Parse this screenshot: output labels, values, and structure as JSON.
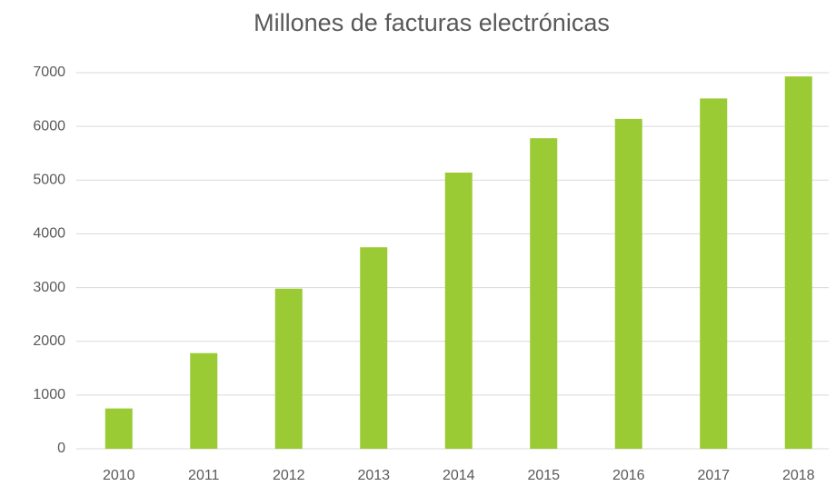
{
  "chart_data": {
    "type": "bar",
    "title": "Millones de facturas electrónicas",
    "categories": [
      "2010",
      "2011",
      "2012",
      "2013",
      "2014",
      "2015",
      "2016",
      "2017",
      "2018"
    ],
    "values": [
      750,
      1780,
      2980,
      3750,
      5140,
      5780,
      6140,
      6520,
      6930
    ],
    "color": "#9acb34",
    "ylim": [
      0,
      7000
    ],
    "yticks": [
      0,
      1000,
      2000,
      3000,
      4000,
      5000,
      6000,
      7000
    ],
    "grid": true
  }
}
